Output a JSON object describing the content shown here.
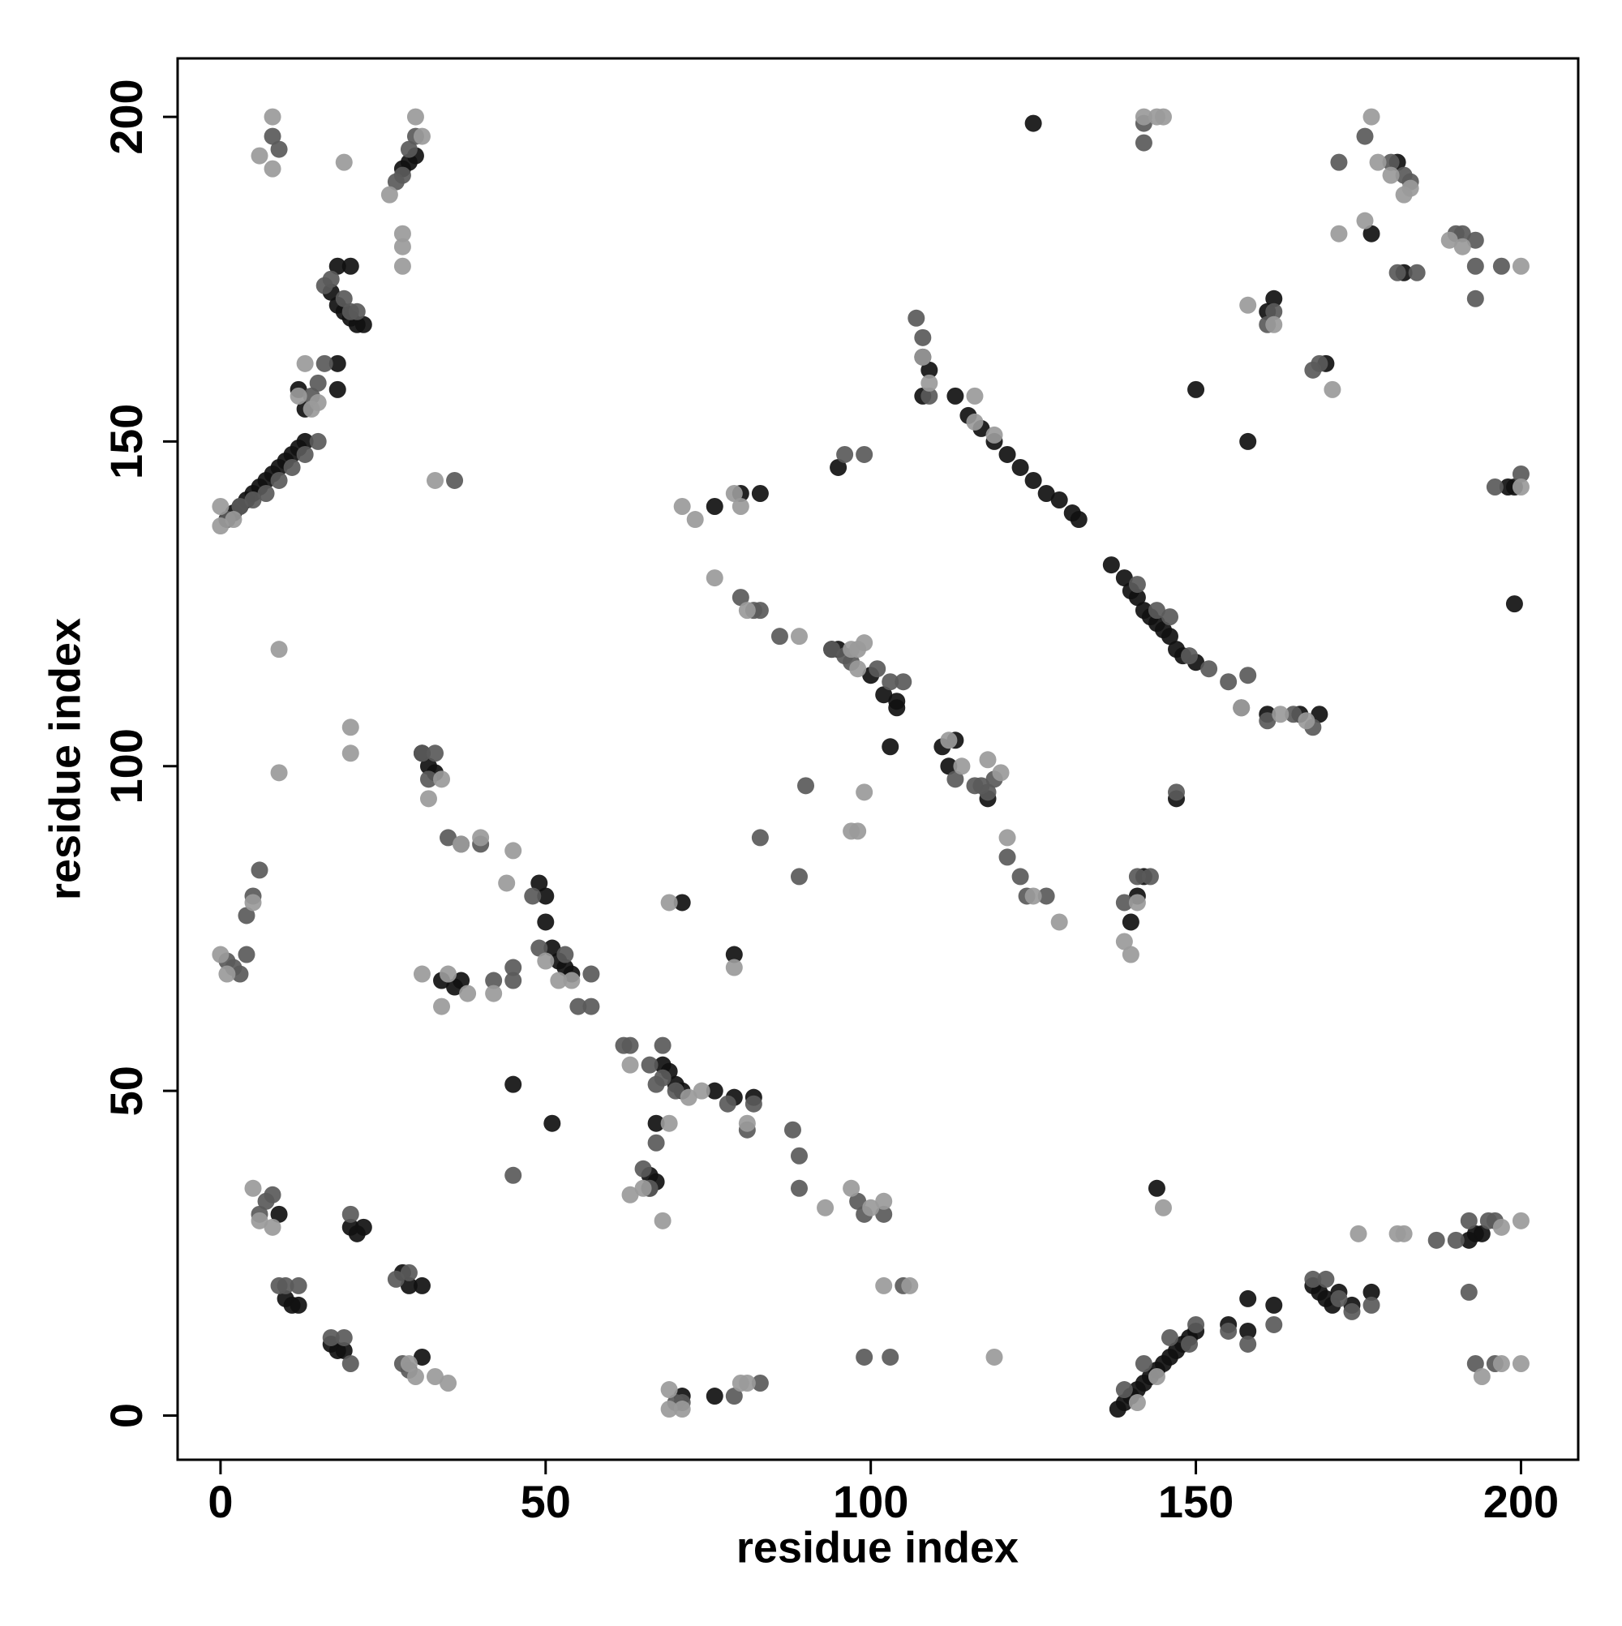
{
  "chart_data": {
    "type": "scatter",
    "x_label": "residue index",
    "y_label": "residue index",
    "xlim": [
      -6.6,
      208.8
    ],
    "ylim": [
      -6.8,
      209
    ],
    "xticks": [
      0,
      50,
      100,
      150,
      200
    ],
    "yticks": [
      0,
      50,
      100,
      150,
      200
    ],
    "grid": false,
    "series": [
      {
        "color": "#111111",
        "x": [
          138,
          139,
          140,
          141,
          142,
          143,
          144,
          145,
          146,
          147,
          148,
          149,
          150,
          1,
          2,
          3,
          4,
          5,
          6,
          7,
          8,
          9,
          10,
          11,
          12,
          13,
          113,
          115,
          117,
          119,
          121,
          123,
          125,
          127,
          129,
          131,
          132,
          137,
          139,
          140,
          141,
          142,
          143,
          144,
          145,
          146,
          147,
          148,
          150,
          17,
          18,
          19,
          20,
          21,
          22,
          18,
          20,
          13,
          12,
          18,
          18,
          28,
          29,
          30,
          125,
          150,
          158,
          199,
          108,
          109,
          108,
          31,
          32,
          33,
          49,
          50,
          50,
          51,
          52,
          53,
          54,
          34,
          36,
          37,
          45,
          51,
          71,
          79,
          68,
          69,
          70,
          71,
          76,
          79,
          82,
          67,
          66,
          67,
          66,
          71,
          76,
          9,
          10,
          11,
          12,
          17,
          18,
          19,
          20,
          21,
          22,
          28,
          29,
          31,
          31,
          103,
          111,
          112,
          113,
          118,
          104,
          104,
          102,
          94,
          95,
          100,
          95,
          76,
          80,
          83,
          147,
          141,
          140,
          142,
          168,
          169,
          170,
          171,
          172,
          174,
          177,
          158,
          162,
          155,
          158,
          144,
          161,
          169,
          166,
          193,
          194,
          192,
          198,
          199,
          170,
          182,
          177,
          181,
          161,
          162
        ],
        "values": [
          1,
          2,
          3,
          4,
          5,
          6,
          7,
          8,
          9,
          10,
          11,
          12,
          13,
          138,
          139,
          140,
          141,
          142,
          143,
          144,
          145,
          146,
          147,
          148,
          149,
          150,
          157,
          154,
          152,
          150,
          148,
          146,
          144,
          142,
          141,
          139,
          138,
          131,
          129,
          127,
          126,
          124,
          123,
          122,
          121,
          120,
          118,
          117,
          116,
          173,
          171,
          170,
          169,
          168,
          168,
          177,
          177,
          155,
          158,
          158,
          162,
          192,
          193,
          194,
          199,
          158,
          150,
          125,
          163,
          161,
          157,
          102,
          100,
          99,
          82,
          80,
          76,
          72,
          70,
          69,
          68,
          67,
          66,
          67,
          51,
          45,
          79,
          71,
          54,
          53,
          51,
          50,
          50,
          49,
          49,
          45,
          37,
          36,
          35,
          3,
          3,
          31,
          18,
          17,
          17,
          11,
          10,
          10,
          29,
          28,
          29,
          22,
          20,
          20,
          9,
          103,
          103,
          100,
          104,
          95,
          109,
          110,
          111,
          118,
          118,
          114,
          146,
          140,
          142,
          142,
          95,
          80,
          76,
          83,
          20,
          19,
          18,
          17,
          19,
          17,
          19,
          18,
          17,
          14,
          13,
          35,
          108,
          108,
          108,
          28,
          28,
          27,
          143,
          143,
          162,
          176,
          182,
          193,
          170,
          172
        ]
      },
      {
        "color": "#5a5a5a",
        "x": [
          1,
          3,
          5,
          7,
          9,
          11,
          13,
          15,
          14,
          15,
          16,
          16,
          17,
          19,
          20,
          21,
          8,
          9,
          27,
          28,
          29,
          30,
          1,
          2,
          4,
          4,
          5,
          6,
          3,
          6,
          7,
          8,
          9,
          10,
          12,
          17,
          19,
          20,
          20,
          27,
          29,
          28,
          29,
          31,
          32,
          33,
          35,
          37,
          40,
          42,
          45,
          45,
          45,
          48,
          49,
          53,
          55,
          57,
          57,
          63,
          65,
          66,
          68,
          67,
          70,
          78,
          82,
          81,
          88,
          89,
          89,
          90,
          89,
          83,
          83,
          79,
          80,
          82,
          83,
          86,
          94,
          96,
          97,
          101,
          103,
          105,
          107,
          108,
          109,
          113,
          116,
          117,
          118,
          119,
          121,
          123,
          124,
          127,
          141,
          144,
          146,
          149,
          152,
          155,
          157,
          158,
          161,
          165,
          168,
          139,
          141,
          143,
          147,
          139,
          142,
          146,
          149,
          150,
          155,
          158,
          162,
          168,
          170,
          172,
          174,
          177,
          187,
          190,
          192,
          195,
          196,
          192,
          193,
          196,
          161,
          162,
          168,
          169,
          172,
          176,
          180,
          182,
          183,
          181,
          184,
          190,
          191,
          193,
          193,
          193,
          197,
          196,
          200,
          142,
          142,
          96,
          99,
          36,
          98,
          99,
          102,
          103,
          99,
          68,
          70,
          71,
          66,
          67,
          62,
          105
        ],
        "values": [
          138,
          140,
          141,
          142,
          144,
          146,
          148,
          150,
          157,
          159,
          162,
          174,
          175,
          172,
          170,
          170,
          197,
          195,
          190,
          191,
          195,
          197,
          70,
          69,
          71,
          77,
          80,
          84,
          68,
          31,
          33,
          34,
          20,
          20,
          20,
          12,
          12,
          8,
          31,
          21,
          22,
          8,
          7,
          102,
          98,
          102,
          89,
          88,
          88,
          67,
          69,
          67,
          37,
          80,
          72,
          71,
          63,
          68,
          63,
          57,
          38,
          54,
          57,
          51,
          50,
          48,
          48,
          44,
          44,
          40,
          35,
          97,
          83,
          89,
          5,
          3,
          126,
          124,
          124,
          120,
          118,
          117,
          116,
          115,
          113,
          113,
          169,
          166,
          157,
          98,
          97,
          97,
          96,
          98,
          86,
          83,
          80,
          80,
          128,
          124,
          123,
          117,
          115,
          113,
          109,
          114,
          107,
          108,
          106,
          79,
          83,
          83,
          96,
          4,
          8,
          12,
          11,
          14,
          13,
          11,
          14,
          21,
          21,
          18,
          16,
          17,
          27,
          27,
          30,
          30,
          30,
          19,
          8,
          8,
          168,
          170,
          161,
          162,
          193,
          197,
          193,
          191,
          190,
          176,
          176,
          182,
          182,
          181,
          177,
          172,
          177,
          143,
          145,
          199,
          196,
          148,
          148,
          144,
          33,
          31,
          31,
          9,
          9,
          52,
          2,
          2,
          35,
          42,
          57,
          20
        ]
      },
      {
        "color": "#9a9a9a",
        "x": [
          0,
          0,
          2,
          6,
          8,
          8,
          9,
          9,
          20,
          20,
          19,
          28,
          28,
          28,
          13,
          14,
          15,
          12,
          26,
          30,
          31,
          33,
          0,
          1,
          5,
          5,
          6,
          8,
          29,
          30,
          33,
          35,
          31,
          34,
          35,
          38,
          42,
          37,
          40,
          44,
          45,
          50,
          52,
          54,
          32,
          34,
          63,
          63,
          65,
          68,
          69,
          69,
          72,
          74,
          79,
          81,
          69,
          69,
          71,
          80,
          81,
          71,
          73,
          76,
          79,
          80,
          81,
          89,
          97,
          98,
          99,
          99,
          97,
          98,
          93,
          97,
          100,
          102,
          102,
          106,
          108,
          109,
          112,
          114,
          116,
          120,
          121,
          125,
          129,
          116,
          119,
          139,
          140,
          141,
          145,
          141,
          144,
          119,
          157,
          163,
          167,
          171,
          172,
          176,
          177,
          178,
          175,
          181,
          182,
          180,
          182,
          183,
          189,
          191,
          158,
          162,
          197,
          200,
          197,
          194,
          200,
          200,
          200,
          144,
          145,
          142,
          98,
          118
        ],
        "values": [
          137,
          140,
          138,
          194,
          200,
          192,
          118,
          99,
          106,
          102,
          193,
          182,
          180,
          177,
          162,
          155,
          156,
          157,
          188,
          200,
          197,
          144,
          71,
          68,
          79,
          35,
          30,
          29,
          8,
          6,
          6,
          5,
          68,
          63,
          68,
          65,
          65,
          88,
          89,
          82,
          87,
          70,
          67,
          67,
          95,
          98,
          54,
          34,
          35,
          30,
          79,
          45,
          49,
          50,
          69,
          45,
          4,
          1,
          1,
          5,
          5,
          140,
          138,
          129,
          142,
          140,
          124,
          120,
          118,
          115,
          119,
          96,
          90,
          90,
          32,
          35,
          32,
          33,
          20,
          20,
          163,
          159,
          104,
          100,
          157,
          99,
          89,
          80,
          76,
          153,
          151,
          73,
          71,
          79,
          32,
          2,
          6,
          9,
          109,
          108,
          107,
          158,
          182,
          184,
          200,
          193,
          28,
          28,
          28,
          191,
          188,
          189,
          181,
          180,
          171,
          168,
          29,
          30,
          8,
          6,
          8,
          177,
          143,
          200,
          200,
          200,
          118,
          101
        ]
      }
    ]
  }
}
